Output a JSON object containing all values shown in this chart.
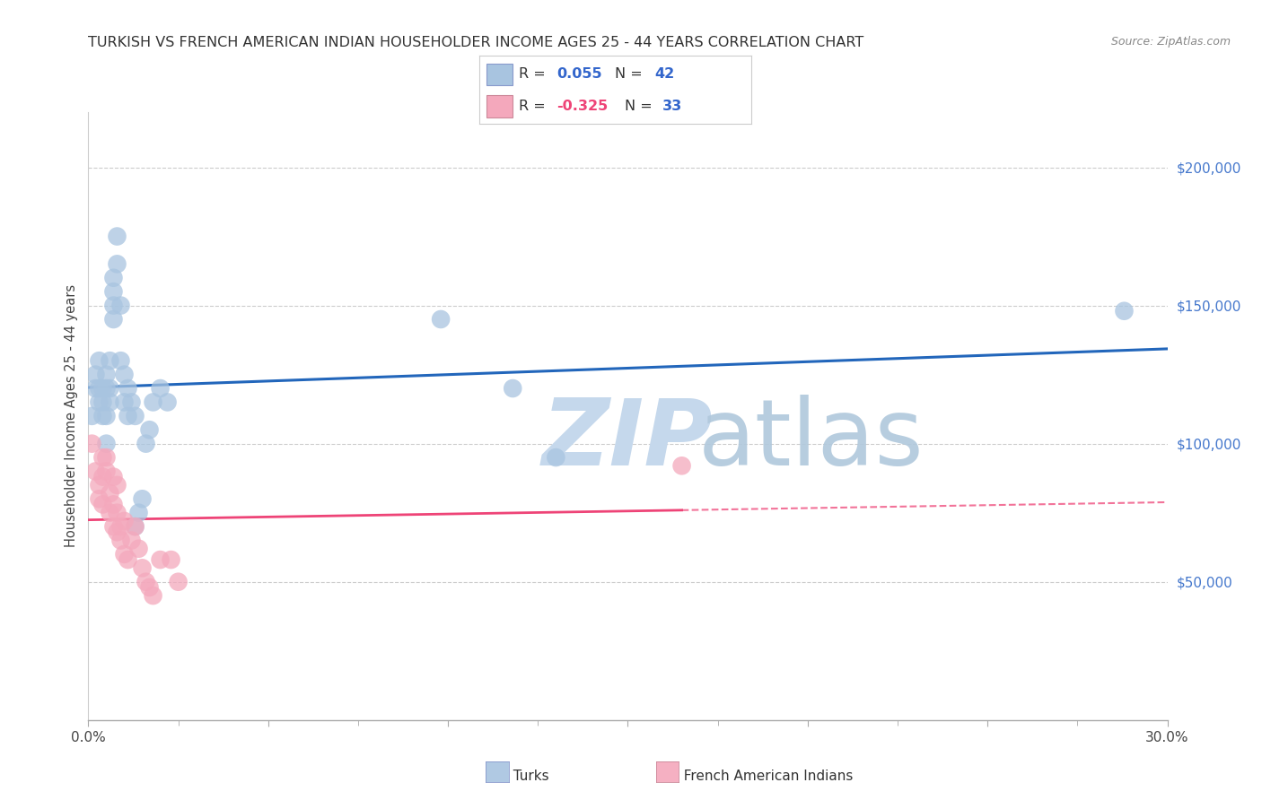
{
  "title": "TURKISH VS FRENCH AMERICAN INDIAN HOUSEHOLDER INCOME AGES 25 - 44 YEARS CORRELATION CHART",
  "source": "Source: ZipAtlas.com",
  "ylabel": "Householder Income Ages 25 - 44 years",
  "xlim": [
    0.0,
    0.3
  ],
  "ylim": [
    0,
    220000
  ],
  "xticks": [
    0.0,
    0.05,
    0.1,
    0.15,
    0.2,
    0.25,
    0.3
  ],
  "xticklabels": [
    "0.0%",
    "",
    "",
    "",
    "",
    "",
    "30.0%"
  ],
  "yticks_right": [
    50000,
    100000,
    150000,
    200000
  ],
  "yticklabels_right": [
    "$50,000",
    "$100,000",
    "$150,000",
    "$200,000"
  ],
  "turks_color": "#A8C4E0",
  "french_color": "#F4A8BC",
  "blue_line_color": "#2266BB",
  "pink_line_color": "#EE4477",
  "watermark_zip_color": "#C5D8EC",
  "watermark_atlas_color": "#B0C8DC",
  "background_color": "#FFFFFF",
  "turks_x": [
    0.001,
    0.002,
    0.002,
    0.003,
    0.003,
    0.003,
    0.004,
    0.004,
    0.004,
    0.005,
    0.005,
    0.005,
    0.005,
    0.006,
    0.006,
    0.006,
    0.007,
    0.007,
    0.007,
    0.007,
    0.008,
    0.008,
    0.009,
    0.009,
    0.01,
    0.01,
    0.011,
    0.011,
    0.012,
    0.013,
    0.013,
    0.014,
    0.015,
    0.016,
    0.017,
    0.018,
    0.02,
    0.022,
    0.098,
    0.118,
    0.13,
    0.288
  ],
  "turks_y": [
    110000,
    120000,
    125000,
    115000,
    120000,
    130000,
    120000,
    115000,
    110000,
    125000,
    120000,
    110000,
    100000,
    130000,
    120000,
    115000,
    145000,
    150000,
    160000,
    155000,
    165000,
    175000,
    150000,
    130000,
    125000,
    115000,
    120000,
    110000,
    115000,
    110000,
    70000,
    75000,
    80000,
    100000,
    105000,
    115000,
    120000,
    115000,
    145000,
    120000,
    95000,
    148000
  ],
  "french_x": [
    0.001,
    0.002,
    0.003,
    0.003,
    0.004,
    0.004,
    0.004,
    0.005,
    0.005,
    0.006,
    0.006,
    0.007,
    0.007,
    0.007,
    0.008,
    0.008,
    0.008,
    0.009,
    0.009,
    0.01,
    0.01,
    0.011,
    0.012,
    0.013,
    0.014,
    0.015,
    0.016,
    0.017,
    0.018,
    0.02,
    0.023,
    0.025,
    0.165
  ],
  "french_y": [
    100000,
    90000,
    85000,
    80000,
    95000,
    88000,
    78000,
    95000,
    90000,
    82000,
    75000,
    88000,
    78000,
    70000,
    85000,
    75000,
    68000,
    70000,
    65000,
    72000,
    60000,
    58000,
    65000,
    70000,
    62000,
    55000,
    50000,
    48000,
    45000,
    58000,
    58000,
    50000,
    92000
  ]
}
